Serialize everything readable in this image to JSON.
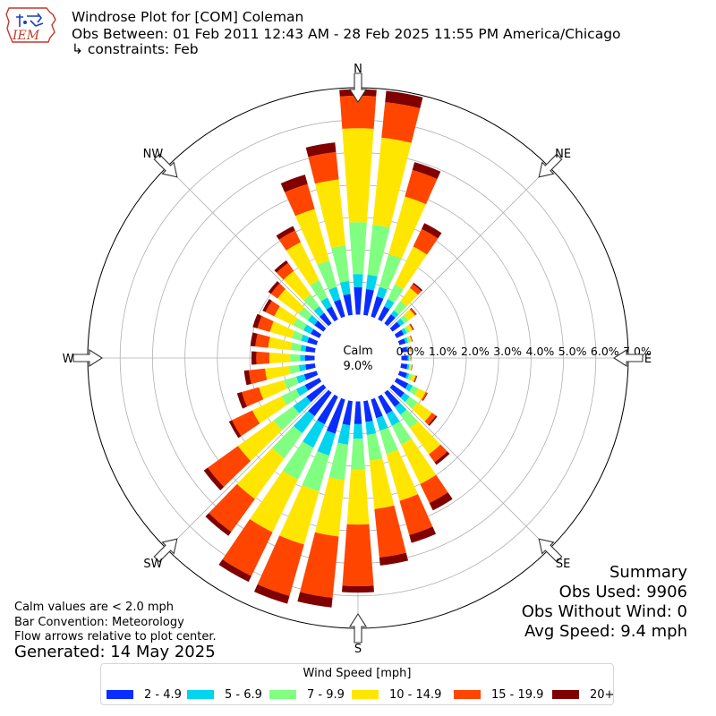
{
  "header": {
    "logo_text": "IEM",
    "title": "Windrose Plot for [COM] Coleman",
    "subtitle": "Obs Between: 01 Feb 2011 12:43 AM - 28 Feb 2025 11:55 PM America/Chicago",
    "constraints": "↳ constraints: Feb"
  },
  "calm": {
    "label": "Calm",
    "value": "9.0%"
  },
  "notes": {
    "line1": "Calm values are < 2.0 mph",
    "line2": "Bar Convention: Meteorology",
    "line3": "Flow arrows relative to plot center.",
    "generated": "Generated: 14 May 2025"
  },
  "summary": {
    "heading": "Summary",
    "obs_used": "Obs Used: 9906",
    "obs_without_wind": "Obs Without Wind: 0",
    "avg_speed": "Avg Speed: 9.4 mph"
  },
  "legend": {
    "title": "Wind Speed [mph]",
    "items": [
      {
        "label": "2 - 4.9",
        "color": "#0a2cff"
      },
      {
        "label": "5 - 6.9",
        "color": "#00d4ee"
      },
      {
        "label": "7 - 9.9",
        "color": "#80ff80"
      },
      {
        "label": "10 - 14.9",
        "color": "#ffe600"
      },
      {
        "label": "15 - 19.9",
        "color": "#ff4500"
      },
      {
        "label": "20+",
        "color": "#800000"
      }
    ]
  },
  "chart_data": {
    "type": "windrose",
    "title": "Windrose Plot for [COM] Coleman",
    "calm_percent": 9.0,
    "radial_ticks": [
      0,
      1,
      2,
      3,
      4,
      5,
      6,
      7
    ],
    "radial_tick_labels": [
      "0.0%",
      "1.0%",
      "2.0%",
      "3.0%",
      "4.0%",
      "5.0%",
      "6.0%",
      "7.0%"
    ],
    "rmax": 7.0,
    "compass_labels": [
      "N",
      "NE",
      "E",
      "SE",
      "S",
      "SW",
      "W",
      "NW"
    ],
    "speed_bins": [
      "2 - 4.9",
      "5 - 6.9",
      "7 - 9.9",
      "10 - 14.9",
      "15 - 19.9",
      "20+"
    ],
    "directions": [
      0,
      10,
      20,
      30,
      40,
      50,
      60,
      70,
      80,
      90,
      100,
      110,
      120,
      130,
      140,
      150,
      160,
      170,
      180,
      190,
      200,
      210,
      220,
      230,
      240,
      250,
      260,
      270,
      280,
      290,
      300,
      310,
      320,
      330,
      340,
      350
    ],
    "cumulative_percent": [
      [
        0.85,
        1.25,
        2.85,
        5.75,
        6.75,
        6.95
      ],
      [
        0.8,
        1.25,
        2.8,
        5.5,
        6.6,
        6.95
      ],
      [
        0.65,
        0.95,
        2.0,
        3.85,
        4.7,
        4.95
      ],
      [
        0.45,
        0.7,
        1.2,
        2.5,
        3.1,
        3.3
      ],
      [
        0.35,
        0.5,
        0.85,
        1.35,
        1.5,
        1.55
      ],
      [
        0.3,
        0.45,
        0.6,
        0.85,
        0.9,
        0.92
      ],
      [
        0.25,
        0.35,
        0.45,
        0.55,
        0.58,
        0.6
      ],
      [
        0.2,
        0.28,
        0.35,
        0.4,
        0.42,
        0.43
      ],
      [
        0.2,
        0.25,
        0.28,
        0.3,
        0.31,
        0.32
      ],
      [
        0.2,
        0.24,
        0.27,
        0.28,
        0.29,
        0.3
      ],
      [
        0.2,
        0.26,
        0.3,
        0.34,
        0.35,
        0.36
      ],
      [
        0.25,
        0.32,
        0.42,
        0.52,
        0.55,
        0.57
      ],
      [
        0.4,
        0.55,
        0.75,
        1.0,
        1.05,
        1.07
      ],
      [
        0.45,
        0.65,
        0.95,
        1.5,
        1.65,
        1.7
      ],
      [
        0.55,
        0.85,
        1.35,
        2.35,
        2.65,
        2.75
      ],
      [
        0.6,
        1.0,
        1.65,
        3.0,
        3.65,
        3.9
      ],
      [
        0.6,
        1.0,
        1.75,
        3.25,
        4.35,
        4.6
      ],
      [
        0.65,
        1.05,
        1.85,
        3.35,
        4.85,
        5.1
      ],
      [
        0.7,
        1.15,
        2.1,
        3.8,
        5.7,
        5.9
      ],
      [
        0.75,
        1.35,
        2.45,
        4.2,
        6.1,
        6.4
      ],
      [
        1.1,
        1.8,
        2.95,
        4.65,
        6.3,
        6.55
      ],
      [
        0.95,
        1.75,
        2.85,
        4.65,
        6.15,
        6.35
      ],
      [
        0.9,
        1.55,
        2.5,
        4.05,
        5.3,
        5.45
      ],
      [
        0.65,
        1.15,
        1.9,
        3.25,
        4.4,
        4.55
      ],
      [
        0.5,
        0.8,
        1.3,
        2.3,
        3.0,
        3.1
      ],
      [
        0.4,
        0.65,
        1.05,
        1.85,
        2.4,
        2.55
      ],
      [
        0.3,
        0.5,
        0.8,
        1.55,
        2.05,
        2.2
      ],
      [
        0.3,
        0.45,
        0.75,
        1.4,
        1.8,
        1.95
      ],
      [
        0.3,
        0.45,
        0.75,
        1.45,
        1.85,
        2.0
      ],
      [
        0.3,
        0.5,
        0.8,
        1.5,
        1.9,
        2.05
      ],
      [
        0.3,
        0.55,
        0.9,
        1.55,
        1.85,
        1.95
      ],
      [
        0.35,
        0.6,
        0.95,
        1.75,
        2.0,
        2.1
      ],
      [
        0.4,
        0.65,
        1.1,
        2.0,
        2.3,
        2.4
      ],
      [
        0.45,
        0.75,
        1.35,
        2.65,
        3.05,
        3.2
      ],
      [
        0.55,
        0.95,
        1.8,
        3.45,
        4.25,
        4.55
      ],
      [
        0.65,
        1.05,
        2.15,
        4.2,
        5.05,
        5.35
      ]
    ]
  }
}
